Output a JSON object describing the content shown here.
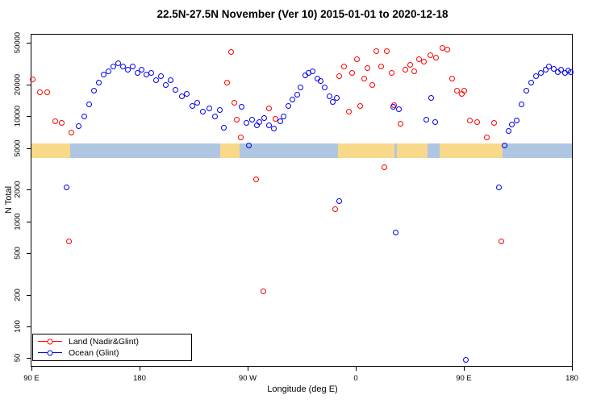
{
  "title": "22.5N-27.5N November (Ver 10)   2015-01-01 to 2020-12-18",
  "chart_data": {
    "type": "scatter",
    "title": "22.5N-27.5N November (Ver 10)   2015-01-01 to 2020-12-18",
    "xlabel": "Longitude (deg E)",
    "ylabel": "N Total",
    "x_axis": {
      "range": [
        90,
        540
      ],
      "ticks": [
        {
          "deg": 90,
          "label": "90 E"
        },
        {
          "deg": 180,
          "label": "180"
        },
        {
          "deg": 270,
          "label": "90 W"
        },
        {
          "deg": 360,
          "label": "0"
        },
        {
          "deg": 450,
          "label": "90 E"
        },
        {
          "deg": 540,
          "label": "180"
        }
      ]
    },
    "y_axis": {
      "scale": "log",
      "scale_range": [
        42,
        60000
      ],
      "ticks": [
        50,
        100,
        200,
        500,
        1000,
        2000,
        5000,
        10000,
        20000,
        50000
      ]
    },
    "legend": [
      {
        "label": "Land (Nadir&Glint)",
        "color": "#ff0000"
      },
      {
        "label": "Ocean (Glint)",
        "color": "#0000ee"
      }
    ],
    "map_band": {
      "value_range": [
        4000,
        5500
      ],
      "ocean_color": "#aec6e2",
      "land_color": "#f8d98a",
      "land_segments_deg": [
        [
          90,
          122
        ],
        [
          247,
          263
        ],
        [
          345,
          392
        ],
        [
          394,
          420
        ],
        [
          430,
          482
        ]
      ]
    },
    "series": [
      {
        "name": "Land (Nadir&Glint)",
        "color": "#ff0000",
        "points": [
          [
            91,
            22500
          ],
          [
            97,
            17000
          ],
          [
            103,
            17000
          ],
          [
            110,
            9000
          ],
          [
            115,
            8700
          ],
          [
            123,
            7000
          ],
          [
            121,
            650
          ],
          [
            253,
            21000
          ],
          [
            256,
            41000
          ],
          [
            259,
            13500
          ],
          [
            261,
            9300
          ],
          [
            264,
            6300
          ],
          [
            277,
            2500
          ],
          [
            283,
            215
          ],
          [
            288,
            12000
          ],
          [
            293,
            9500
          ],
          [
            343,
            1300
          ],
          [
            346,
            24000
          ],
          [
            350,
            30000
          ],
          [
            354,
            11000
          ],
          [
            357,
            26000
          ],
          [
            361,
            35000
          ],
          [
            364,
            12500
          ],
          [
            367,
            23000
          ],
          [
            370,
            29000
          ],
          [
            374,
            20000
          ],
          [
            377,
            42000
          ],
          [
            381,
            30000
          ],
          [
            384,
            3300
          ],
          [
            386,
            42000
          ],
          [
            390,
            26000
          ],
          [
            392,
            12800
          ],
          [
            397,
            8500
          ],
          [
            401,
            28000
          ],
          [
            405,
            31000
          ],
          [
            409,
            27000
          ],
          [
            413,
            35000
          ],
          [
            417,
            33000
          ],
          [
            422,
            38000
          ],
          [
            427,
            36000
          ],
          [
            432,
            45000
          ],
          [
            436,
            43000
          ],
          [
            440,
            23000
          ],
          [
            444,
            17500
          ],
          [
            448,
            16500
          ],
          [
            450,
            17500
          ],
          [
            455,
            9200
          ],
          [
            461,
            8800
          ],
          [
            469,
            6300
          ],
          [
            475,
            8700
          ],
          [
            481,
            650
          ]
        ]
      },
      {
        "name": "Ocean (Glint)",
        "color": "#0000ee",
        "points": [
          [
            119,
            2100
          ],
          [
            129,
            8000
          ],
          [
            134,
            10000
          ],
          [
            138,
            13000
          ],
          [
            142,
            17500
          ],
          [
            146,
            21000
          ],
          [
            150,
            25000
          ],
          [
            154,
            27000
          ],
          [
            158,
            30000
          ],
          [
            162,
            32000
          ],
          [
            166,
            30000
          ],
          [
            170,
            28000
          ],
          [
            174,
            30000
          ],
          [
            178,
            26000
          ],
          [
            182,
            28000
          ],
          [
            186,
            25000
          ],
          [
            190,
            26000
          ],
          [
            194,
            22000
          ],
          [
            198,
            24000
          ],
          [
            202,
            20000
          ],
          [
            206,
            22000
          ],
          [
            210,
            18000
          ],
          [
            215,
            15500
          ],
          [
            219,
            16500
          ],
          [
            224,
            12500
          ],
          [
            228,
            13500
          ],
          [
            233,
            11000
          ],
          [
            238,
            12000
          ],
          [
            243,
            10000
          ],
          [
            247,
            11500
          ],
          [
            250,
            7800
          ],
          [
            265,
            12400
          ],
          [
            269,
            8700
          ],
          [
            271,
            5300
          ],
          [
            274,
            9300
          ],
          [
            278,
            8200
          ],
          [
            280,
            8800
          ],
          [
            284,
            9700
          ],
          [
            288,
            8200
          ],
          [
            292,
            7700
          ],
          [
            297,
            8900
          ],
          [
            300,
            10000
          ],
          [
            304,
            12600
          ],
          [
            307,
            14400
          ],
          [
            311,
            16000
          ],
          [
            314,
            18700
          ],
          [
            318,
            24500
          ],
          [
            321,
            26000
          ],
          [
            324,
            27000
          ],
          [
            328,
            23000
          ],
          [
            331,
            21800
          ],
          [
            334,
            18700
          ],
          [
            338,
            15500
          ],
          [
            341,
            13700
          ],
          [
            344,
            15000
          ],
          [
            346,
            1550
          ],
          [
            391,
            12300
          ],
          [
            396,
            11800
          ],
          [
            393,
            780
          ],
          [
            419,
            9300
          ],
          [
            423,
            15000
          ],
          [
            426,
            8800
          ],
          [
            452,
            48
          ],
          [
            479,
            2100
          ],
          [
            484,
            5300
          ],
          [
            487,
            7200
          ],
          [
            490,
            8300
          ],
          [
            494,
            9200
          ],
          [
            498,
            13000
          ],
          [
            502,
            17500
          ],
          [
            506,
            21000
          ],
          [
            510,
            24000
          ],
          [
            514,
            26000
          ],
          [
            518,
            28000
          ],
          [
            521,
            30000
          ],
          [
            525,
            28500
          ],
          [
            528,
            26500
          ],
          [
            531,
            28000
          ],
          [
            534,
            26000
          ],
          [
            537,
            27500
          ],
          [
            539,
            26500
          ]
        ]
      }
    ]
  }
}
